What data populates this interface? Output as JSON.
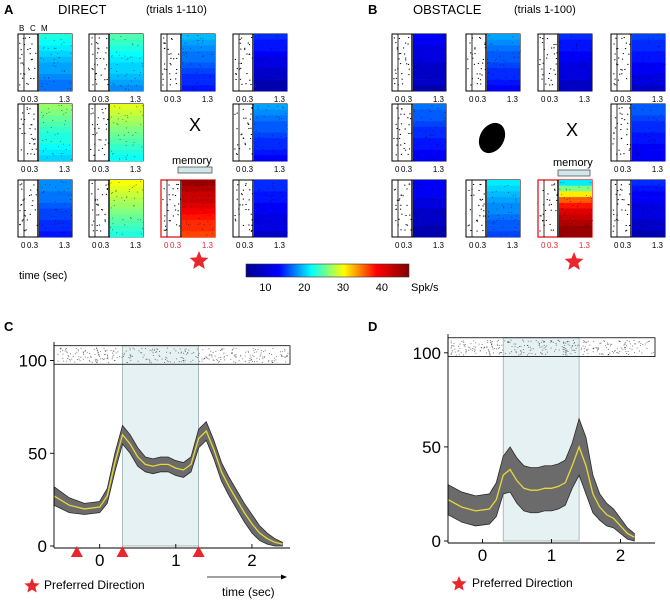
{
  "figure": {
    "panel_a": {
      "letter": "A",
      "title": "DIRECT",
      "trials": "(trials 1-110)",
      "bcm_labels": [
        "B",
        "C",
        "M"
      ]
    },
    "panel_b": {
      "letter": "B",
      "title": "OBSTACLE",
      "trials": "(trials 1-100)"
    },
    "panel_c": {
      "letter": "C"
    },
    "panel_d": {
      "letter": "D"
    },
    "tick_start": "0",
    "tick_cue": "0.3",
    "tick_end": "1.3",
    "center_x": "X",
    "memory_label": "memory",
    "time_label_a": "time (sec)",
    "time_label_c": "time (sec)",
    "preferred_direction": "Preferred Direction",
    "colorbar": {
      "ticks": [
        "10",
        "20",
        "30",
        "40"
      ],
      "unit": "Spk/s",
      "range": [
        5,
        47
      ],
      "colors": [
        "#00008f",
        "#0000ff",
        "#00ffff",
        "#ffff00",
        "#ff0000",
        "#800000"
      ]
    },
    "accent_red": "#e8262b"
  },
  "raster_grid": {
    "panel_a": [
      {
        "position": "top-left",
        "rate_levels": [
          22,
          21,
          20,
          19,
          18,
          17,
          17,
          16,
          15,
          15
        ]
      },
      {
        "position": "top",
        "rate_levels": [
          24,
          23,
          22,
          21,
          20,
          19,
          19,
          18,
          17,
          16
        ]
      },
      {
        "position": "top-right",
        "rate_levels": [
          18,
          17,
          16,
          15,
          15,
          14,
          13,
          12,
          12,
          11
        ]
      },
      {
        "position": "left",
        "rate_levels": [
          27,
          26,
          25,
          24,
          23,
          22,
          22,
          21,
          20,
          19
        ]
      },
      {
        "position": "center",
        "rate_levels": [
          30,
          29,
          28,
          27,
          26,
          25,
          24,
          23,
          22,
          21
        ]
      },
      {
        "position": "right",
        "rate_levels": [
          17,
          16,
          15,
          14,
          14,
          13,
          12,
          12,
          11,
          10
        ]
      },
      {
        "position": "bottom-left",
        "rate_levels": [
          16,
          16,
          15,
          15,
          14,
          13,
          13,
          12,
          12,
          11
        ]
      },
      {
        "position": "bottom",
        "rate_levels": [
          31,
          30,
          29,
          28,
          27,
          26,
          25,
          24,
          23,
          22
        ]
      },
      {
        "position": "bottom-right",
        "rate_levels": [
          12,
          12,
          11,
          11,
          10,
          10,
          9,
          9,
          9,
          8
        ]
      },
      {
        "position": "preferred",
        "rate_levels": [
          46,
          45,
          44,
          44,
          43,
          42,
          41,
          40,
          40,
          39
        ]
      }
    ],
    "panel_b": [
      {
        "position": "top-left",
        "rate_levels": [
          10,
          10,
          9,
          9,
          9,
          8,
          8,
          8,
          8,
          7
        ]
      },
      {
        "position": "top",
        "rate_levels": [
          17,
          16,
          15,
          14,
          14,
          13,
          12,
          12,
          11,
          10
        ]
      },
      {
        "position": "top-right",
        "rate_levels": [
          12,
          11,
          11,
          10,
          10,
          9,
          9,
          9,
          8,
          8
        ]
      },
      {
        "position": "left",
        "rate_levels": [
          15,
          14,
          14,
          13,
          12,
          12,
          11,
          11,
          10,
          10
        ]
      },
      {
        "position": "right",
        "rate_levels": [
          14,
          14,
          13,
          12,
          12,
          11,
          11,
          10,
          10,
          10
        ]
      },
      {
        "position": "bottom-left",
        "rate_levels": [
          10,
          10,
          10,
          9,
          9,
          8,
          8,
          8,
          7,
          7
        ]
      },
      {
        "position": "bottom",
        "rate_levels": [
          20,
          19,
          18,
          17,
          16,
          16,
          15,
          14,
          14,
          13
        ]
      },
      {
        "position": "bottom-right",
        "rate_levels": [
          12,
          11,
          10,
          10,
          9,
          9,
          9,
          8,
          8,
          7
        ]
      },
      {
        "position": "preferred",
        "rate_levels": [
          20,
          26,
          32,
          38,
          41,
          43,
          44,
          45,
          46,
          46
        ]
      }
    ]
  },
  "chart_data": [
    {
      "type": "line",
      "panel": "C",
      "xlabel": "time (sec)",
      "ylabel": "",
      "xlim": [
        -0.6,
        2.5
      ],
      "ylim": [
        0,
        110
      ],
      "xticks": [
        "0",
        "1",
        "2"
      ],
      "yticks": [
        "0",
        "50",
        "100"
      ],
      "shaded_interval": [
        0.3,
        1.3
      ],
      "event_markers": [
        -0.3,
        0.3,
        1.3
      ],
      "legend": "Preferred Direction",
      "series": [
        {
          "name": "mean firing rate",
          "x": [
            -0.6,
            -0.4,
            -0.2,
            0.0,
            0.1,
            0.2,
            0.3,
            0.4,
            0.5,
            0.6,
            0.7,
            0.8,
            0.9,
            1.0,
            1.1,
            1.2,
            1.3,
            1.4,
            1.5,
            1.6,
            1.7,
            1.8,
            1.9,
            2.0,
            2.1,
            2.2,
            2.3,
            2.4
          ],
          "y": [
            27,
            22,
            20,
            21,
            27,
            45,
            60,
            55,
            48,
            44,
            43,
            44,
            44,
            42,
            41,
            44,
            58,
            62,
            52,
            40,
            32,
            25,
            18,
            12,
            7,
            4,
            2,
            1
          ]
        },
        {
          "name": "upper bound",
          "x": [
            -0.6,
            -0.4,
            -0.2,
            0.0,
            0.1,
            0.2,
            0.3,
            0.4,
            0.5,
            0.6,
            0.7,
            0.8,
            0.9,
            1.0,
            1.1,
            1.2,
            1.3,
            1.4,
            1.5,
            1.6,
            1.7,
            1.8,
            1.9,
            2.0,
            2.1,
            2.2,
            2.3,
            2.4
          ],
          "y": [
            32,
            26,
            23,
            24,
            31,
            50,
            65,
            60,
            53,
            48,
            47,
            48,
            48,
            46,
            45,
            48,
            63,
            67,
            57,
            45,
            37,
            30,
            23,
            17,
            11,
            7,
            4,
            2
          ]
        },
        {
          "name": "lower bound",
          "x": [
            -0.6,
            -0.4,
            -0.2,
            0.0,
            0.1,
            0.2,
            0.3,
            0.4,
            0.5,
            0.6,
            0.7,
            0.8,
            0.9,
            1.0,
            1.1,
            1.2,
            1.3,
            1.4,
            1.5,
            1.6,
            1.7,
            1.8,
            1.9,
            2.0,
            2.1,
            2.2,
            2.3,
            2.4
          ],
          "y": [
            22,
            18,
            17,
            18,
            23,
            40,
            55,
            50,
            43,
            40,
            39,
            40,
            40,
            38,
            37,
            40,
            53,
            57,
            47,
            35,
            27,
            20,
            13,
            7,
            3,
            1,
            0,
            0
          ]
        }
      ]
    },
    {
      "type": "line",
      "panel": "D",
      "xlabel": "",
      "ylabel": "",
      "xlim": [
        -0.5,
        2.5
      ],
      "ylim": [
        0,
        110
      ],
      "xticks": [
        "0",
        "1",
        "2"
      ],
      "yticks": [
        "0",
        "50",
        "100"
      ],
      "shaded_interval": [
        0.3,
        1.4
      ],
      "legend": "Preferred Direction",
      "series": [
        {
          "name": "mean firing rate",
          "x": [
            -0.5,
            -0.3,
            -0.1,
            0.1,
            0.2,
            0.3,
            0.4,
            0.5,
            0.6,
            0.7,
            0.8,
            0.9,
            1.0,
            1.1,
            1.2,
            1.3,
            1.4,
            1.5,
            1.6,
            1.7,
            1.8,
            1.9,
            2.0,
            2.1,
            2.2
          ],
          "y": [
            22,
            18,
            16,
            17,
            22,
            35,
            38,
            32,
            28,
            27,
            27,
            28,
            28,
            29,
            31,
            40,
            50,
            40,
            25,
            18,
            14,
            12,
            8,
            4,
            2
          ]
        },
        {
          "name": "upper bound",
          "x": [
            -0.5,
            -0.3,
            -0.1,
            0.1,
            0.2,
            0.3,
            0.4,
            0.5,
            0.6,
            0.7,
            0.8,
            0.9,
            1.0,
            1.1,
            1.2,
            1.3,
            1.4,
            1.5,
            1.6,
            1.7,
            1.8,
            1.9,
            2.0,
            2.1,
            2.2
          ],
          "y": [
            30,
            26,
            24,
            25,
            31,
            45,
            50,
            44,
            40,
            39,
            39,
            40,
            40,
            41,
            43,
            52,
            65,
            55,
            35,
            25,
            20,
            17,
            12,
            7,
            4
          ]
        },
        {
          "name": "lower bound",
          "x": [
            -0.5,
            -0.3,
            -0.1,
            0.1,
            0.2,
            0.3,
            0.4,
            0.5,
            0.6,
            0.7,
            0.8,
            0.9,
            1.0,
            1.1,
            1.2,
            1.3,
            1.4,
            1.5,
            1.6,
            1.7,
            1.8,
            1.9,
            2.0,
            2.1,
            2.2
          ],
          "y": [
            14,
            10,
            8,
            9,
            13,
            25,
            26,
            20,
            16,
            15,
            15,
            16,
            16,
            17,
            19,
            28,
            35,
            25,
            15,
            11,
            8,
            7,
            4,
            1,
            0
          ]
        }
      ]
    }
  ]
}
